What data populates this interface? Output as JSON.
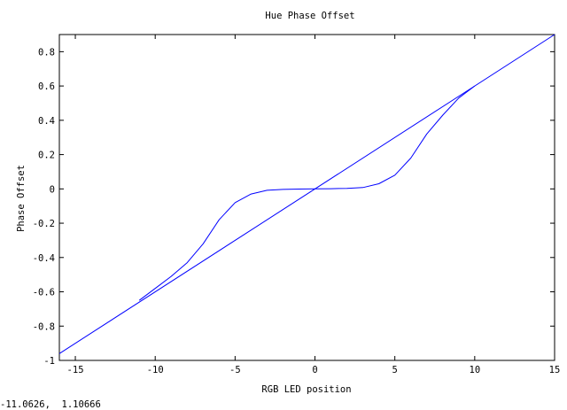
{
  "chart_data": {
    "type": "line",
    "title": "Hue Phase Offset",
    "xlabel": "RGB LED position",
    "ylabel": "Phase Offset",
    "xlim": [
      -16,
      15
    ],
    "ylim": [
      -1,
      0.9
    ],
    "xticks": [
      -15,
      -10,
      -5,
      0,
      5,
      10,
      15
    ],
    "xtick_labels": [
      "-15",
      "-10",
      "-5",
      "0",
      "5",
      "10",
      "15"
    ],
    "yticks": [
      -1,
      -0.8,
      -0.6,
      -0.4,
      -0.2,
      0,
      0.2,
      0.4,
      0.6,
      0.8
    ],
    "ytick_labels": [
      "-1",
      "-0.8",
      "-0.6",
      "-0.4",
      "-0.2",
      "0",
      "0.2",
      "0.4",
      "0.6",
      "0.8"
    ],
    "grid": false,
    "line_color": "#0000ff",
    "series": [
      {
        "x": [
          -16,
          15
        ],
        "y": [
          -0.96,
          0.9
        ]
      },
      {
        "x": [
          -11,
          -10,
          -9,
          -8,
          -7,
          -6,
          -5,
          -4,
          -3,
          -2,
          -1,
          0,
          1,
          2,
          3,
          4,
          5,
          6,
          7,
          8,
          9,
          10
        ],
        "y": [
          -0.65,
          -0.58,
          -0.51,
          -0.43,
          -0.32,
          -0.18,
          -0.08,
          -0.03,
          -0.008,
          -0.003,
          -0.001,
          0,
          0.001,
          0.003,
          0.008,
          0.03,
          0.08,
          0.18,
          0.32,
          0.43,
          0.53,
          0.6
        ]
      }
    ]
  },
  "status": {
    "readout": "-11.0626,  1.10666"
  }
}
